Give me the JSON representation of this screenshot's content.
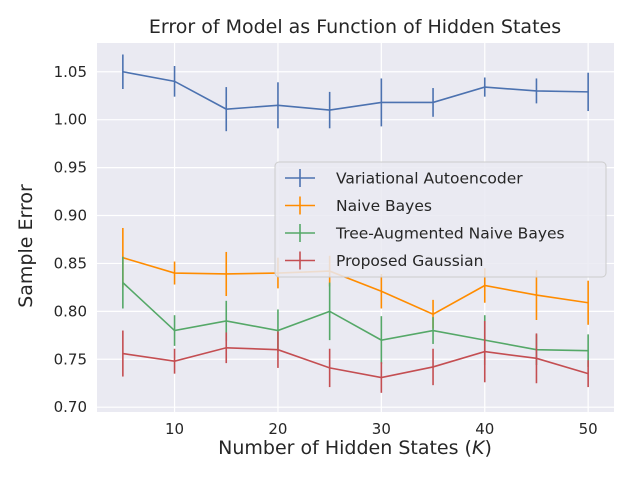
{
  "chart_data": {
    "type": "line",
    "title": "Error of Model as Function of Hidden States",
    "xlabel_main": "Number of Hidden States (",
    "xlabel_var": "K",
    "xlabel_end": ")",
    "ylabel": "Sample Error",
    "x": [
      5,
      10,
      15,
      20,
      25,
      30,
      35,
      40,
      45,
      50
    ],
    "xticks": [
      10,
      20,
      30,
      40,
      50
    ],
    "yticks": [
      0.7,
      0.75,
      0.8,
      0.85,
      0.9,
      0.95,
      1.0,
      1.05
    ],
    "xlim": [
      2.5,
      52.5
    ],
    "ylim": [
      0.695,
      1.08
    ],
    "grid": true,
    "legend_position": "center-right",
    "background": "#eaeaf2",
    "series": [
      {
        "name": "Variational Autoencoder",
        "color": "#4c72b0",
        "values": [
          1.05,
          1.04,
          1.011,
          1.015,
          1.01,
          1.018,
          1.018,
          1.034,
          1.03,
          1.029
        ],
        "errors": [
          0.018,
          0.016,
          0.023,
          0.024,
          0.019,
          0.025,
          0.015,
          0.01,
          0.013,
          0.02
        ]
      },
      {
        "name": "Naive Bayes",
        "color": "#ff8c00",
        "values": [
          0.856,
          0.84,
          0.839,
          0.84,
          0.842,
          0.821,
          0.797,
          0.827,
          0.817,
          0.809
        ],
        "errors": [
          0.031,
          0.012,
          0.023,
          0.016,
          0.016,
          0.018,
          0.015,
          0.018,
          0.026,
          0.023
        ]
      },
      {
        "name": "Tree-Augmented Naive Bayes",
        "color": "#55a868",
        "values": [
          0.83,
          0.78,
          0.79,
          0.78,
          0.8,
          0.77,
          0.78,
          0.77,
          0.76,
          0.759
        ],
        "errors": [
          0.027,
          0.016,
          0.021,
          0.022,
          0.03,
          0.025,
          0.014,
          0.026,
          0.016,
          0.017
        ]
      },
      {
        "name": "Proposed Gaussian",
        "color": "#c44e52",
        "values": [
          0.756,
          0.748,
          0.762,
          0.76,
          0.741,
          0.731,
          0.742,
          0.758,
          0.751,
          0.735
        ],
        "errors": [
          0.024,
          0.013,
          0.016,
          0.019,
          0.02,
          0.016,
          0.019,
          0.032,
          0.026,
          0.014
        ]
      }
    ]
  }
}
